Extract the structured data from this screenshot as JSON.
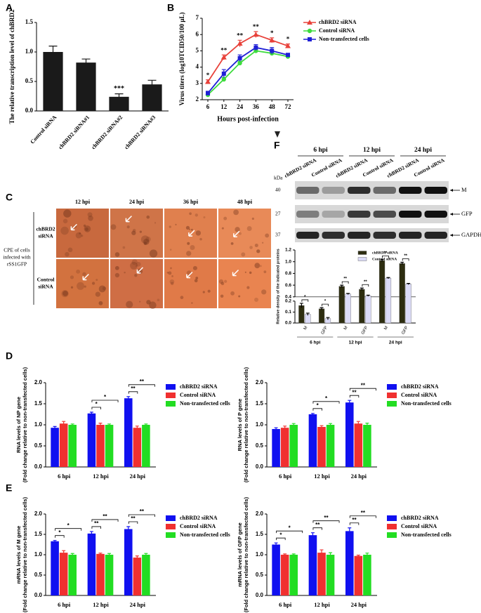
{
  "panel_labels": [
    "A",
    "B",
    "C",
    "D",
    "E",
    "F"
  ],
  "panel_c": {
    "columns": [
      "12 hpi",
      "24 hpi",
      "36 hpi",
      "48 hpi"
    ],
    "rows": [
      [
        "chBRD2",
        "siRNA"
      ],
      [
        "Control",
        "siRNA"
      ]
    ],
    "side_label": [
      "CPE of cells",
      "infected with",
      "rSS1GFP"
    ]
  },
  "panel_f_blot": {
    "times": [
      "6 hpi",
      "12 hpi",
      "24 hpi"
    ],
    "lanes": [
      "chBRD2 siRNA",
      "Control siRNA",
      "chBRD2 siRNA",
      "Control siRNA",
      "chBRD2 siRNA",
      "Control siRNA"
    ],
    "unit": "kDa",
    "markers": [
      "40",
      "27",
      "37"
    ],
    "bands": [
      "M",
      "GFP",
      "GAPDH"
    ]
  },
  "chart_data": [
    {
      "type": "bar",
      "ylabel": "The relative transcription level of chBRD2",
      "categories": [
        "Control siRNA",
        "chBRD2 siRNA#1",
        "chBRD2 siRNA#2",
        "chBRD2 siRNA#3"
      ],
      "values": [
        1.0,
        0.82,
        0.24,
        0.45
      ],
      "errors": [
        0.1,
        0.06,
        0.05,
        0.07
      ],
      "color": "#1a1a1a",
      "annotations": [
        null,
        null,
        "***",
        null
      ],
      "ylim": [
        0,
        1.5
      ],
      "yticks": [
        {
          "value": 0,
          "label": "0.0"
        },
        0.5,
        {
          "value": 1,
          "label": "1.0"
        },
        1.5
      ]
    },
    {
      "type": "line",
      "ylabel": "Virus titers (log10TCID50/100 μL)",
      "xlabel": "Hours post-infection",
      "categories": [
        "6",
        "12",
        "24",
        "36",
        "48",
        "72"
      ],
      "series": [
        {
          "name": "chBRD2 siRNA",
          "color": "#e8413a",
          "marker": "triangle",
          "values": [
            3.1,
            4.6,
            5.45,
            6.0,
            5.65,
            5.3
          ],
          "errors": [
            0.12,
            0.15,
            0.2,
            0.18,
            0.15,
            0.12
          ]
        },
        {
          "name": "Control siRNA",
          "color": "#3ddc3d",
          "marker": "circle",
          "values": [
            2.3,
            3.25,
            4.25,
            5.0,
            4.85,
            4.65
          ],
          "errors": [
            0.1,
            0.12,
            0.12,
            0.12,
            0.1,
            0.08
          ]
        },
        {
          "name": "Non-transfected cells",
          "color": "#1f1fd6",
          "marker": "square",
          "values": [
            2.4,
            3.6,
            4.55,
            5.2,
            5.0,
            4.75
          ],
          "errors": [
            0.12,
            0.25,
            0.2,
            0.18,
            0.2,
            0.08
          ]
        }
      ],
      "annotations": [
        "*",
        "**",
        "**",
        "**",
        "*",
        "*"
      ],
      "legend": "right",
      "ylim": [
        2,
        7
      ],
      "yticks": [
        2,
        3,
        4,
        5,
        6,
        7
      ]
    },
    {
      "type": "bar",
      "ylabel": "Relative density of the indicated proteins",
      "categories": [
        "M",
        "GFP",
        "M",
        "GFP",
        "M",
        "GFP"
      ],
      "groups": [
        "6 hpi",
        "12 hpi",
        "24 hpi"
      ],
      "series": [
        {
          "name": "chBRD2 siRNA",
          "color": "#2d2d10",
          "values": [
            0.16,
            0.13,
            0.58,
            0.53,
            1.02,
            0.97
          ],
          "errors": [
            0.02,
            0.01,
            0.02,
            0.02,
            0.02,
            0.02
          ]
        },
        {
          "name": "Control siRNA",
          "color": "#dcdcf8",
          "values": [
            0.08,
            0.04,
            0.45,
            0.42,
            0.72,
            0.62
          ],
          "errors": [
            0.01,
            0.01,
            0.01,
            0.01,
            0.01,
            0.01
          ]
        }
      ],
      "annotations": [
        "*",
        "*",
        "**",
        "**",
        "**",
        "**"
      ],
      "legend": "upper right",
      "ylim": [
        0,
        1.2
      ],
      "ybreak": [
        0.2,
        0.4
      ],
      "yticks": [
        {
          "value": 0,
          "label": "0.0"
        },
        0.1,
        0.2,
        0.4,
        0.6,
        0.8,
        {
          "value": 1,
          "label": "1.0"
        },
        1.2
      ]
    },
    {
      "type": "bar",
      "ylabel": [
        "RNA levels of NP gene",
        "(Fold change relative to non-transfected cells)"
      ],
      "categories": [
        "6 hpi",
        "12 hpi",
        "24 hpi"
      ],
      "series": [
        {
          "name": "chBRD2 siRNA",
          "color": "#1010f0",
          "values": [
            0.93,
            1.27,
            1.63
          ],
          "errors": [
            0.03,
            0.03,
            0.04
          ]
        },
        {
          "name": "Control siRNA",
          "color": "#f03030",
          "values": [
            1.03,
            1.0,
            0.93
          ],
          "errors": [
            0.05,
            0.04,
            0.04
          ]
        },
        {
          "name": "Non-transfected cells",
          "color": "#22dd22",
          "values": [
            1.0,
            1.0,
            1.0
          ],
          "errors": [
            0.02,
            0.02,
            0.02
          ]
        }
      ],
      "brackets": [
        [],
        [
          "*",
          "*"
        ],
        [
          "**",
          "**"
        ]
      ],
      "legend": "right",
      "ylim": [
        0,
        2
      ],
      "yticks": [
        {
          "value": 0,
          "label": "0.0"
        },
        0.5,
        {
          "value": 1,
          "label": "1.0"
        },
        1.5,
        {
          "value": 2,
          "label": "2.0"
        }
      ]
    },
    {
      "type": "bar",
      "ylabel": [
        "RNA levels of P gene",
        "(Fold change relative to non-transfected cells)"
      ],
      "categories": [
        "6 hpi",
        "12 hpi",
        "24 hpi"
      ],
      "series": [
        {
          "name": "chBRD2 siRNA",
          "color": "#1010f0",
          "values": [
            0.9,
            1.25,
            1.53
          ],
          "errors": [
            0.03,
            0.02,
            0.05
          ]
        },
        {
          "name": "Control siRNA",
          "color": "#f03030",
          "values": [
            0.93,
            0.95,
            1.03
          ],
          "errors": [
            0.04,
            0.03,
            0.05
          ]
        },
        {
          "name": "Non-transfected cells",
          "color": "#22dd22",
          "values": [
            1.0,
            1.0,
            1.0
          ],
          "errors": [
            0.03,
            0.03,
            0.04
          ]
        }
      ],
      "brackets": [
        [],
        [
          "*",
          "*"
        ],
        [
          "**",
          "**"
        ]
      ],
      "legend": "right",
      "ylim": [
        0,
        2
      ],
      "yticks": [
        {
          "value": 0,
          "label": "0.0"
        },
        0.5,
        {
          "value": 1,
          "label": "1.0"
        },
        1.5,
        {
          "value": 2,
          "label": "2.0"
        }
      ]
    },
    {
      "type": "bar",
      "ylabel": [
        "mRNA levels of M gene",
        "(Fold change relative to non-transfected cells)"
      ],
      "categories": [
        "6 hpi",
        "12 hpi",
        "24 hpi"
      ],
      "series": [
        {
          "name": "chBRD2 siRNA",
          "color": "#1010f0",
          "values": [
            1.33,
            1.52,
            1.63
          ],
          "errors": [
            0.02,
            0.05,
            0.06
          ]
        },
        {
          "name": "Control siRNA",
          "color": "#f03030",
          "values": [
            1.05,
            1.02,
            0.93
          ],
          "errors": [
            0.05,
            0.02,
            0.04
          ]
        },
        {
          "name": "Non-transfected cells",
          "color": "#22dd22",
          "values": [
            1.0,
            1.0,
            1.0
          ],
          "errors": [
            0.03,
            0.03,
            0.03
          ]
        }
      ],
      "brackets": [
        [
          "*",
          "*"
        ],
        [
          "**",
          "**"
        ],
        [
          "**",
          "**"
        ]
      ],
      "legend": "right",
      "ylim": [
        0,
        2
      ],
      "yticks": [
        {
          "value": 0,
          "label": "0.0"
        },
        0.5,
        {
          "value": 1,
          "label": "1.0"
        },
        1.5,
        {
          "value": 2,
          "label": "2.0"
        }
      ]
    },
    {
      "type": "bar",
      "ylabel": [
        "mRNA levels of GFP gene",
        "(Fold change relative to non-transfected cells)"
      ],
      "categories": [
        "6 hpi",
        "12 hpi",
        "24 hpi"
      ],
      "series": [
        {
          "name": "chBRD2 siRNA",
          "color": "#1010f0",
          "values": [
            1.25,
            1.48,
            1.58
          ],
          "errors": [
            0.04,
            0.06,
            0.08
          ]
        },
        {
          "name": "Control siRNA",
          "color": "#f03030",
          "values": [
            1.0,
            1.05,
            0.97
          ],
          "errors": [
            0.02,
            0.07,
            0.02
          ]
        },
        {
          "name": "Non-transfected cells",
          "color": "#22dd22",
          "values": [
            1.0,
            1.0,
            1.0
          ],
          "errors": [
            0.02,
            0.05,
            0.04
          ]
        }
      ],
      "brackets": [
        [
          "*",
          "*"
        ],
        [
          "**",
          "**"
        ],
        [
          "**",
          "**"
        ]
      ],
      "legend": "right",
      "ylim": [
        0,
        2
      ],
      "yticks": [
        {
          "value": 0,
          "label": "0.0"
        },
        0.5,
        {
          "value": 1,
          "label": "1.0"
        },
        1.5,
        {
          "value": 2,
          "label": "2.0"
        }
      ]
    }
  ]
}
